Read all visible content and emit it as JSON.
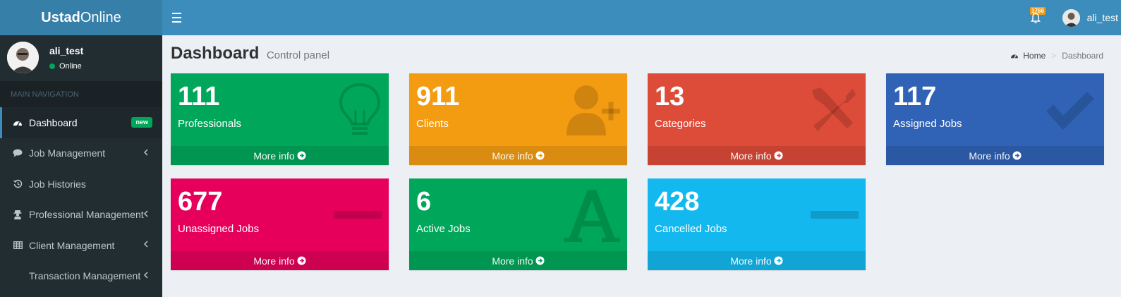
{
  "app": {
    "logo_bold": "Ustad",
    "logo_rest": "Online"
  },
  "header": {
    "notification_count": "1766",
    "username": "ali_test"
  },
  "sidebar": {
    "user": {
      "name": "ali_test",
      "status": "Online"
    },
    "nav_header": "MAIN NAVIGATION",
    "items": [
      {
        "label": "Dashboard",
        "badge": "new",
        "icon": "dashboard-icon"
      },
      {
        "label": "Job Management",
        "icon": "comment-icon"
      },
      {
        "label": "Job Histories",
        "icon": "history-icon"
      },
      {
        "label": "Professional Management",
        "icon": "user-secret-icon"
      },
      {
        "label": "Client Management",
        "icon": "table-icon"
      },
      {
        "label": "Transaction Management",
        "icon": ""
      }
    ]
  },
  "content": {
    "title": "Dashboard",
    "subtitle": "Control panel",
    "breadcrumb": {
      "home": "Home",
      "current": "Dashboard"
    }
  },
  "boxes": [
    {
      "value": "111",
      "label": "Professionals",
      "more": "More info",
      "color": "#00a65a",
      "icon": "lightbulb-icon"
    },
    {
      "value": "911",
      "label": "Clients",
      "more": "More info",
      "color": "#f39c12",
      "icon": "user-plus-icon"
    },
    {
      "value": "13",
      "label": "Categories",
      "more": "More info",
      "color": "#dd4b39",
      "icon": "wrench-icon"
    },
    {
      "value": "117",
      "label": "Assigned Jobs",
      "more": "More info",
      "color": "#3063b6",
      "icon": "check-icon"
    },
    {
      "value": "677",
      "label": "Unassigned Jobs",
      "more": "More info",
      "color": "#e6005c",
      "icon": "minus-icon"
    },
    {
      "value": "6",
      "label": "Active Jobs",
      "more": "More info",
      "color": "#00a65a",
      "icon": "letter-a-icon"
    },
    {
      "value": "428",
      "label": "Cancelled Jobs",
      "more": "More info",
      "color": "#13b8ef",
      "icon": "minus-icon"
    }
  ]
}
